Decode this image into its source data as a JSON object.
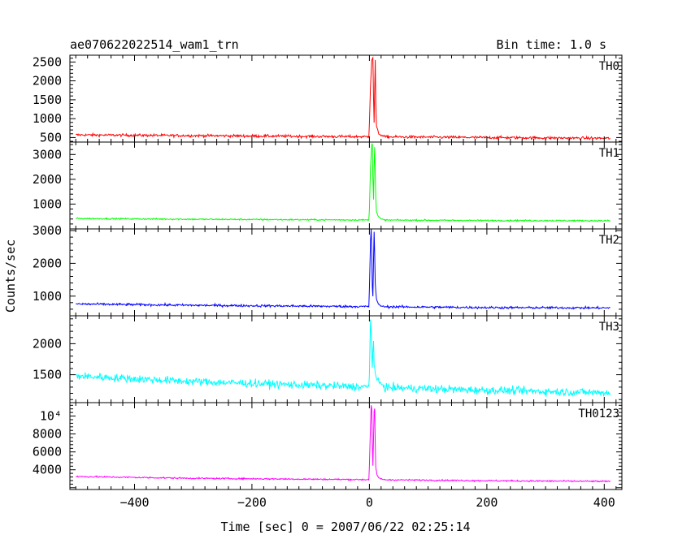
{
  "header": {
    "title": "ae070622022514_wam1_trn",
    "bin_time": "Bin time: 1.0 s"
  },
  "axes": {
    "xlabel": "Time [sec] 0 = 2007/06/22 02:25:14",
    "ylabel": "Counts/sec",
    "xlim": [
      -510,
      430
    ],
    "xticks": [
      -400,
      -200,
      0,
      200,
      400
    ],
    "xtick_labels": [
      "−400",
      "−200",
      "0",
      "200",
      "400"
    ]
  },
  "chart_data": {
    "type": "line",
    "title": "ae070622022514_wam1_trn",
    "xlabel": "Time [sec] 0 = 2007/06/22 02:25:14",
    "ylabel": "Counts/sec",
    "grid": false,
    "x_range": [
      -500,
      410
    ],
    "bin_time_s": 1.0,
    "series": [
      {
        "name": "TH0",
        "color": "#ff0000",
        "ylim": [
          380,
          2680
        ],
        "yticks": [
          500,
          1000,
          1500,
          2000,
          2500
        ],
        "ytick_labels": [
          "500",
          "1000",
          "1500",
          "2000",
          "2500"
        ],
        "noise": 25,
        "baseline": [
          [
            -500,
            570
          ],
          [
            -300,
            550
          ],
          [
            0,
            520
          ],
          [
            200,
            500
          ],
          [
            410,
            480
          ]
        ],
        "burst": [
          [
            -1,
            520
          ],
          [
            0,
            900
          ],
          [
            2,
            1900
          ],
          [
            4,
            2550
          ],
          [
            6,
            2620
          ],
          [
            7,
            1500
          ],
          [
            8,
            900
          ],
          [
            9,
            1800
          ],
          [
            10,
            2560
          ],
          [
            11,
            1400
          ],
          [
            12,
            800
          ],
          [
            14,
            700
          ],
          [
            16,
            600
          ],
          [
            20,
            560
          ],
          [
            25,
            530
          ]
        ]
      },
      {
        "name": "TH1",
        "color": "#00ff00",
        "ylim": [
          0,
          3500
        ],
        "yticks": [
          1000,
          2000,
          3000
        ],
        "ytick_labels": [
          "1000",
          "2000",
          "3000"
        ],
        "noise": 20,
        "baseline": [
          [
            -500,
            420
          ],
          [
            -300,
            390
          ],
          [
            0,
            360
          ],
          [
            200,
            340
          ],
          [
            410,
            330
          ]
        ],
        "burst": [
          [
            -1,
            360
          ],
          [
            0,
            800
          ],
          [
            2,
            2500
          ],
          [
            4,
            3400
          ],
          [
            5,
            3450
          ],
          [
            6,
            2000
          ],
          [
            7,
            1200
          ],
          [
            8,
            2600
          ],
          [
            9,
            3300
          ],
          [
            10,
            2200
          ],
          [
            11,
            1200
          ],
          [
            12,
            700
          ],
          [
            15,
            500
          ],
          [
            20,
            400
          ],
          [
            25,
            370
          ]
        ]
      },
      {
        "name": "TH2",
        "color": "#0000ff",
        "ylim": [
          400,
          3050
        ],
        "yticks": [
          1000,
          2000,
          3000
        ],
        "ytick_labels": [
          "1000",
          "2000",
          "3000"
        ],
        "noise": 25,
        "baseline": [
          [
            -500,
            760
          ],
          [
            -300,
            720
          ],
          [
            0,
            680
          ],
          [
            200,
            650
          ],
          [
            410,
            640
          ]
        ],
        "burst": [
          [
            -1,
            680
          ],
          [
            0,
            1200
          ],
          [
            2,
            2700
          ],
          [
            3,
            3050
          ],
          [
            4,
            2300
          ],
          [
            5,
            1300
          ],
          [
            6,
            1000
          ],
          [
            7,
            2100
          ],
          [
            8,
            2950
          ],
          [
            9,
            2300
          ],
          [
            10,
            1400
          ],
          [
            12,
            900
          ],
          [
            15,
            760
          ],
          [
            20,
            700
          ],
          [
            25,
            680
          ]
        ]
      },
      {
        "name": "TH3",
        "color": "#00ffff",
        "ylim": [
          1050,
          2450
        ],
        "yticks": [
          1500,
          2000
        ],
        "ytick_labels": [
          "1500",
          "2000"
        ],
        "noise": 45,
        "baseline": [
          [
            -500,
            1480
          ],
          [
            -300,
            1390
          ],
          [
            0,
            1300
          ],
          [
            200,
            1250
          ],
          [
            410,
            1210
          ]
        ],
        "burst": [
          [
            -1,
            1300
          ],
          [
            0,
            1500
          ],
          [
            1,
            2000
          ],
          [
            2,
            2400
          ],
          [
            3,
            2200
          ],
          [
            4,
            1800
          ],
          [
            5,
            1600
          ],
          [
            6,
            1900
          ],
          [
            7,
            2050
          ],
          [
            8,
            1700
          ],
          [
            10,
            1500
          ],
          [
            14,
            1400
          ],
          [
            20,
            1350
          ],
          [
            25,
            1320
          ]
        ]
      },
      {
        "name": "TH0123",
        "color": "#ff00ff",
        "ylim": [
          1800,
          11500
        ],
        "yticks": [
          4000,
          6000,
          8000,
          10000
        ],
        "ytick_labels": [
          "4000",
          "6000",
          "8000",
          "10⁴"
        ],
        "noise": 60,
        "baseline": [
          [
            -500,
            3250
          ],
          [
            -300,
            3050
          ],
          [
            0,
            2900
          ],
          [
            200,
            2780
          ],
          [
            410,
            2700
          ]
        ],
        "burst": [
          [
            -1,
            2900
          ],
          [
            0,
            4500
          ],
          [
            2,
            9000
          ],
          [
            3,
            11200
          ],
          [
            4,
            10800
          ],
          [
            5,
            7000
          ],
          [
            6,
            4500
          ],
          [
            7,
            7500
          ],
          [
            8,
            10500
          ],
          [
            9,
            10800
          ],
          [
            10,
            7000
          ],
          [
            11,
            4200
          ],
          [
            13,
            3400
          ],
          [
            16,
            3100
          ],
          [
            22,
            2950
          ]
        ]
      }
    ]
  }
}
